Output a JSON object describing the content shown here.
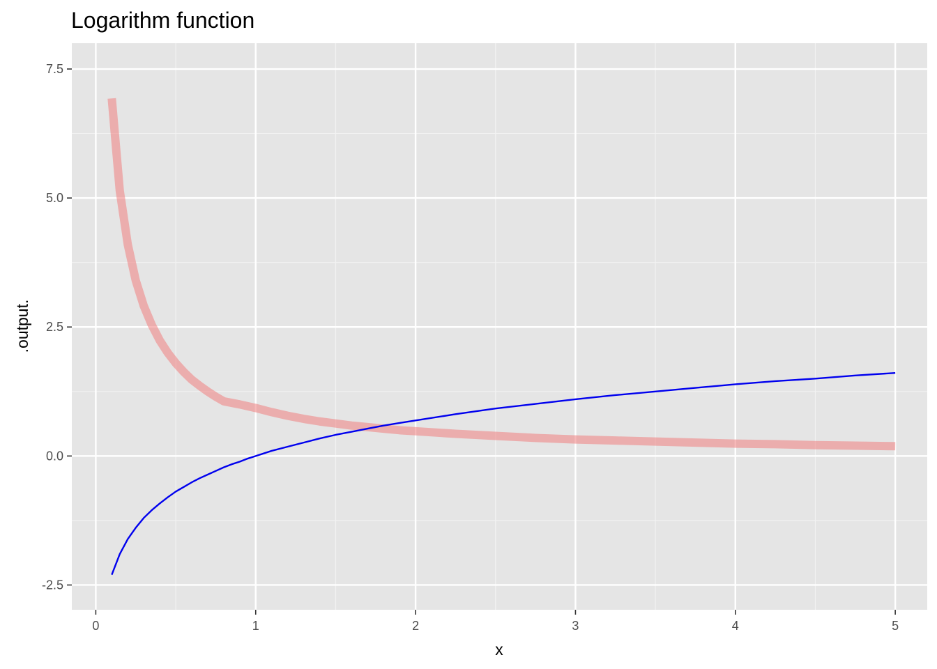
{
  "chart_data": {
    "type": "line",
    "title": "Logarithm function",
    "xlabel": "x",
    "ylabel": ".output.",
    "xlim": [
      -0.15,
      5.2
    ],
    "ylim": [
      -2.98,
      8.0
    ],
    "x_ticks": [
      0,
      1,
      2,
      3,
      4,
      5
    ],
    "x_tick_labels": [
      "0",
      "1",
      "2",
      "3",
      "4",
      "5"
    ],
    "x_minor_ticks": [
      0.5,
      1.5,
      2.5,
      3.5,
      4.5
    ],
    "y_ticks": [
      -2.5,
      0,
      2.5,
      5,
      7.5
    ],
    "y_tick_labels": [
      "-2.5",
      "0.0",
      "2.5",
      "5.0",
      "7.5"
    ],
    "y_minor_ticks": [
      -1.25,
      1.25,
      3.75,
      6.25
    ],
    "grid": true,
    "legend": "none",
    "panel_background": "#e5e5e5",
    "series": [
      {
        "function": "reciprocal (1/x), scaled",
        "color": "#f08080",
        "opacity": 0.55,
        "line_width": "thick",
        "x": [
          0.1,
          0.15,
          0.2,
          0.25,
          0.3,
          0.35,
          0.4,
          0.45,
          0.5,
          0.55,
          0.6,
          0.65,
          0.7,
          0.75,
          0.8,
          0.9,
          1.0,
          1.1,
          1.2,
          1.3,
          1.4,
          1.5,
          1.6,
          1.7,
          1.8,
          1.9,
          2.0,
          2.25,
          2.5,
          2.75,
          3.0,
          3.25,
          3.5,
          3.75,
          4.0,
          4.25,
          4.5,
          4.75,
          5.0
        ],
        "y": [
          6.93,
          5.14,
          4.1,
          3.4,
          2.91,
          2.54,
          2.24,
          2.0,
          1.8,
          1.63,
          1.48,
          1.36,
          1.25,
          1.15,
          1.06,
          1.0,
          0.93,
          0.85,
          0.78,
          0.72,
          0.67,
          0.63,
          0.59,
          0.56,
          0.53,
          0.5,
          0.48,
          0.43,
          0.39,
          0.35,
          0.32,
          0.3,
          0.28,
          0.26,
          0.24,
          0.23,
          0.21,
          0.2,
          0.19
        ]
      },
      {
        "function": "natural logarithm ln(x)",
        "color": "#0000ee",
        "opacity": 1,
        "line_width": "thin",
        "x": [
          0.1,
          0.15,
          0.2,
          0.25,
          0.3,
          0.35,
          0.4,
          0.45,
          0.5,
          0.55,
          0.6,
          0.65,
          0.7,
          0.75,
          0.8,
          0.85,
          0.9,
          0.95,
          1.0,
          1.1,
          1.2,
          1.3,
          1.4,
          1.5,
          1.6,
          1.7,
          1.8,
          1.9,
          2.0,
          2.25,
          2.5,
          2.75,
          3.0,
          3.25,
          3.5,
          3.75,
          4.0,
          4.25,
          4.5,
          4.75,
          5.0
        ],
        "y": [
          -2.3,
          -1.9,
          -1.61,
          -1.39,
          -1.2,
          -1.05,
          -0.92,
          -0.8,
          -0.69,
          -0.6,
          -0.51,
          -0.43,
          -0.36,
          -0.29,
          -0.22,
          -0.16,
          -0.11,
          -0.05,
          0.0,
          0.1,
          0.18,
          0.26,
          0.34,
          0.41,
          0.47,
          0.53,
          0.59,
          0.64,
          0.69,
          0.81,
          0.92,
          1.01,
          1.1,
          1.18,
          1.25,
          1.32,
          1.39,
          1.45,
          1.5,
          1.56,
          1.61
        ]
      }
    ]
  }
}
